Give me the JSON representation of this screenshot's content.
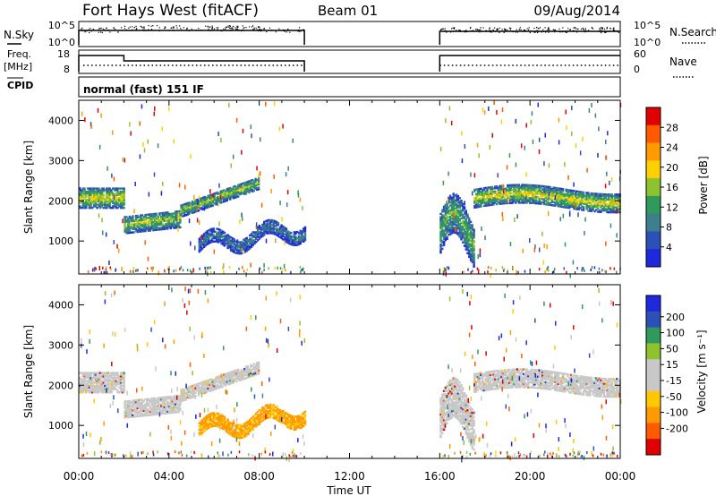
{
  "header": {
    "title": "Fort Hays West (fitACF)",
    "beam": "Beam 01",
    "date": "09/Aug/2014"
  },
  "top_panels": {
    "nsky_label": "N.Sky",
    "nsky_ticks": [
      "10^5",
      "10^0"
    ],
    "nsearch_label": "N.Search",
    "nsearch_ticks": [
      "10^5",
      "10^0"
    ],
    "freq_label": "Freq.",
    "freq_unit": "[MHz]",
    "freq_ticks": [
      18,
      8
    ],
    "nave_label": "Nave",
    "nave_ticks": [
      60,
      0
    ],
    "cpid_label": "CPID",
    "cpid_text": "normal (fast) 151 IF"
  },
  "chart_data": [
    {
      "type": "heatmap",
      "name": "power-panel",
      "ylabel": "Slant Range [km]",
      "xlabel": "",
      "yticks": [
        1000,
        2000,
        3000,
        4000
      ],
      "ylim": [
        180,
        4500
      ],
      "xlim": [
        0,
        24
      ],
      "colorbar": {
        "label": "Power [dB]",
        "ticks": [
          4,
          8,
          12,
          16,
          20,
          24,
          28
        ],
        "range": [
          0,
          32
        ],
        "colors": [
          "#1e28dc",
          "#2d4fb8",
          "#3d7f8e",
          "#2e9a5c",
          "#8ec22e",
          "#ffd000",
          "#ff9a00",
          "#ff5a00",
          "#e00000"
        ]
      },
      "echo_bands": [
        {
          "t0": 0.0,
          "t1": 2.0,
          "r0": 1800,
          "r1": 2350,
          "power": 20
        },
        {
          "t0": 2.0,
          "t1": 4.5,
          "r0": 1150,
          "r1": 1700,
          "power": 17
        },
        {
          "t0": 4.5,
          "t1": 8.0,
          "r0": 1500,
          "r1": 2550,
          "power": 16
        },
        {
          "t0": 5.3,
          "t1": 10.0,
          "r0": 550,
          "r1": 1600,
          "power": 8
        },
        {
          "t0": 16.0,
          "t1": 17.5,
          "r0": 600,
          "r1": 2300,
          "power": 14
        },
        {
          "t0": 17.5,
          "t1": 24.0,
          "r0": 1700,
          "r1": 2500,
          "power": 20
        }
      ]
    },
    {
      "type": "heatmap",
      "name": "velocity-panel",
      "ylabel": "Slant Range [km]",
      "xlabel": "Time UT",
      "xticks": [
        "00:00",
        "04:00",
        "08:00",
        "12:00",
        "16:00",
        "20:00",
        "00:00"
      ],
      "yticks": [
        1000,
        2000,
        3000,
        4000
      ],
      "ylim": [
        180,
        4500
      ],
      "xlim": [
        0,
        24
      ],
      "colorbar": {
        "label": "Velocity [m s⁻¹]",
        "ticks": [
          "200",
          "100",
          "50",
          "15",
          "-15",
          "-50",
          "-100",
          "-200"
        ],
        "range": [
          -250,
          250
        ],
        "colors": [
          "#e00000",
          "#ff5a00",
          "#ff9a00",
          "#ffc800",
          "#c8c8c8",
          "#c8c8c8",
          "#8ec22e",
          "#2e9a5c",
          "#2d4fb8",
          "#1e28dc"
        ]
      },
      "echo_bands": [
        {
          "t0": 0.0,
          "t1": 2.0,
          "r0": 1800,
          "r1": 2350,
          "velocity": 0
        },
        {
          "t0": 2.0,
          "t1": 4.5,
          "r0": 1150,
          "r1": 1700,
          "velocity": 0
        },
        {
          "t0": 4.5,
          "t1": 8.0,
          "r0": 1500,
          "r1": 2550,
          "velocity": 0
        },
        {
          "t0": 5.3,
          "t1": 10.0,
          "r0": 600,
          "r1": 1600,
          "velocity": -90
        },
        {
          "t0": 16.0,
          "t1": 17.5,
          "r0": 600,
          "r1": 2300,
          "velocity": 10
        },
        {
          "t0": 17.5,
          "t1": 24.0,
          "r0": 1700,
          "r1": 2500,
          "velocity": 0
        }
      ]
    }
  ]
}
